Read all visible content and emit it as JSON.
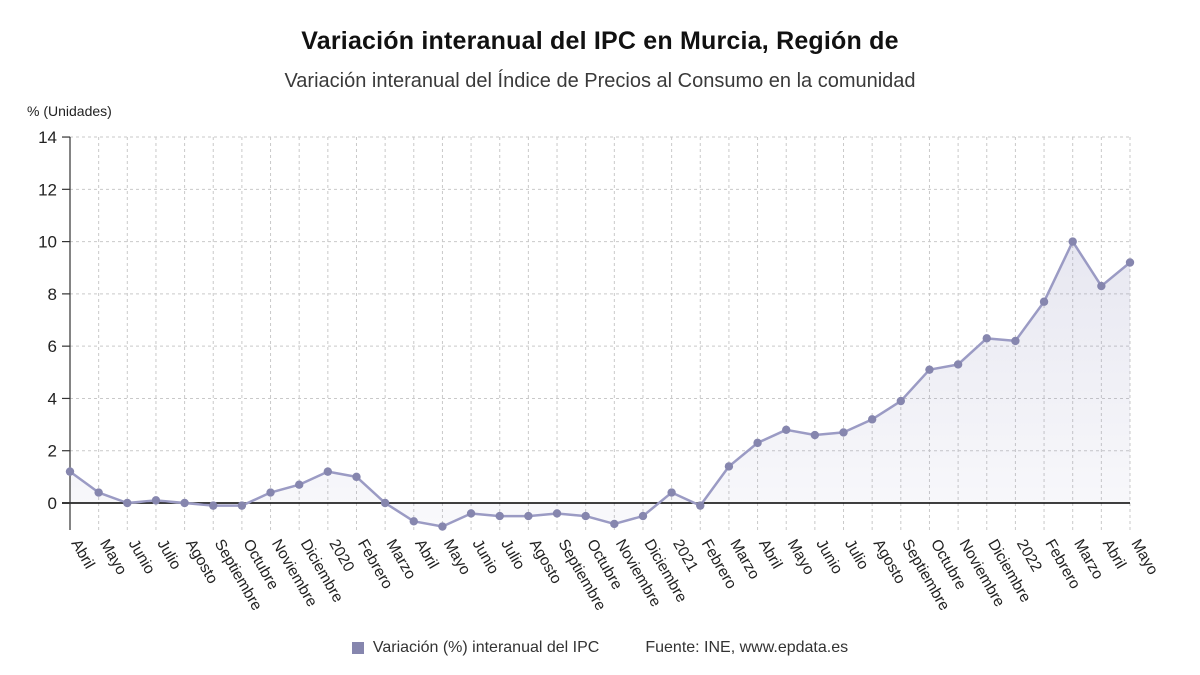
{
  "header": {
    "title": "Variación interanual del IPC en Murcia, Región de",
    "subtitle": "Variación interanual del Índice de Precios al Consumo en la comunidad"
  },
  "footer": {
    "legend_label": "Variación (%) interanual del IPC",
    "source": "Fuente: INE, www.epdata.es"
  },
  "chart_data": {
    "type": "line",
    "title": "Variación interanual del IPC en Murcia, Región de",
    "subtitle": "Variación interanual del Índice de Precios al Consumo en la comunidad",
    "ylabel": "% (Unidades)",
    "xlabel": "",
    "categories": [
      "Abril",
      "Mayo",
      "Junio",
      "Julio",
      "Agosto",
      "Septiembre",
      "Octubre",
      "Noviembre",
      "Diciembre",
      "2020",
      "Febrero",
      "Marzo",
      "Abril",
      "Mayo",
      "Junio",
      "Julio",
      "Agosto",
      "Septiembre",
      "Octubre",
      "Noviembre",
      "Diciembre",
      "2021",
      "Febrero",
      "Marzo",
      "Abril",
      "Mayo",
      "Junio",
      "Julio",
      "Agosto",
      "Septiembre",
      "Octubre",
      "Noviembre",
      "Diciembre",
      "2022",
      "Febrero",
      "Marzo",
      "Abril",
      "Mayo"
    ],
    "series": [
      {
        "name": "Variación (%) interanual del IPC",
        "values": [
          1.2,
          0.4,
          0.0,
          0.1,
          0.0,
          -0.1,
          -0.1,
          0.4,
          0.7,
          1.2,
          1.0,
          0.0,
          -0.7,
          -0.9,
          -0.4,
          -0.5,
          -0.5,
          -0.4,
          -0.5,
          -0.8,
          -0.5,
          0.4,
          -0.1,
          1.4,
          2.3,
          2.8,
          2.6,
          2.7,
          3.2,
          3.9,
          5.1,
          5.3,
          6.3,
          6.2,
          7.7,
          10.0,
          8.3,
          9.2
        ]
      }
    ],
    "ylim": [
      -1.2,
      14
    ],
    "yticks": [
      0,
      2,
      4,
      6,
      8,
      10,
      12,
      14
    ],
    "grid": "dashed",
    "legend_position": "bottom",
    "zero_baseline": true,
    "colors": {
      "line": "#9b9bc4",
      "marker": "#8686ae",
      "area_fill": "#8888b8",
      "grid": "#c9c9c9",
      "axis": "#333333",
      "zero_line": "#000000",
      "text": "#222222"
    },
    "source": "Fuente: INE, www.epdata.es"
  }
}
